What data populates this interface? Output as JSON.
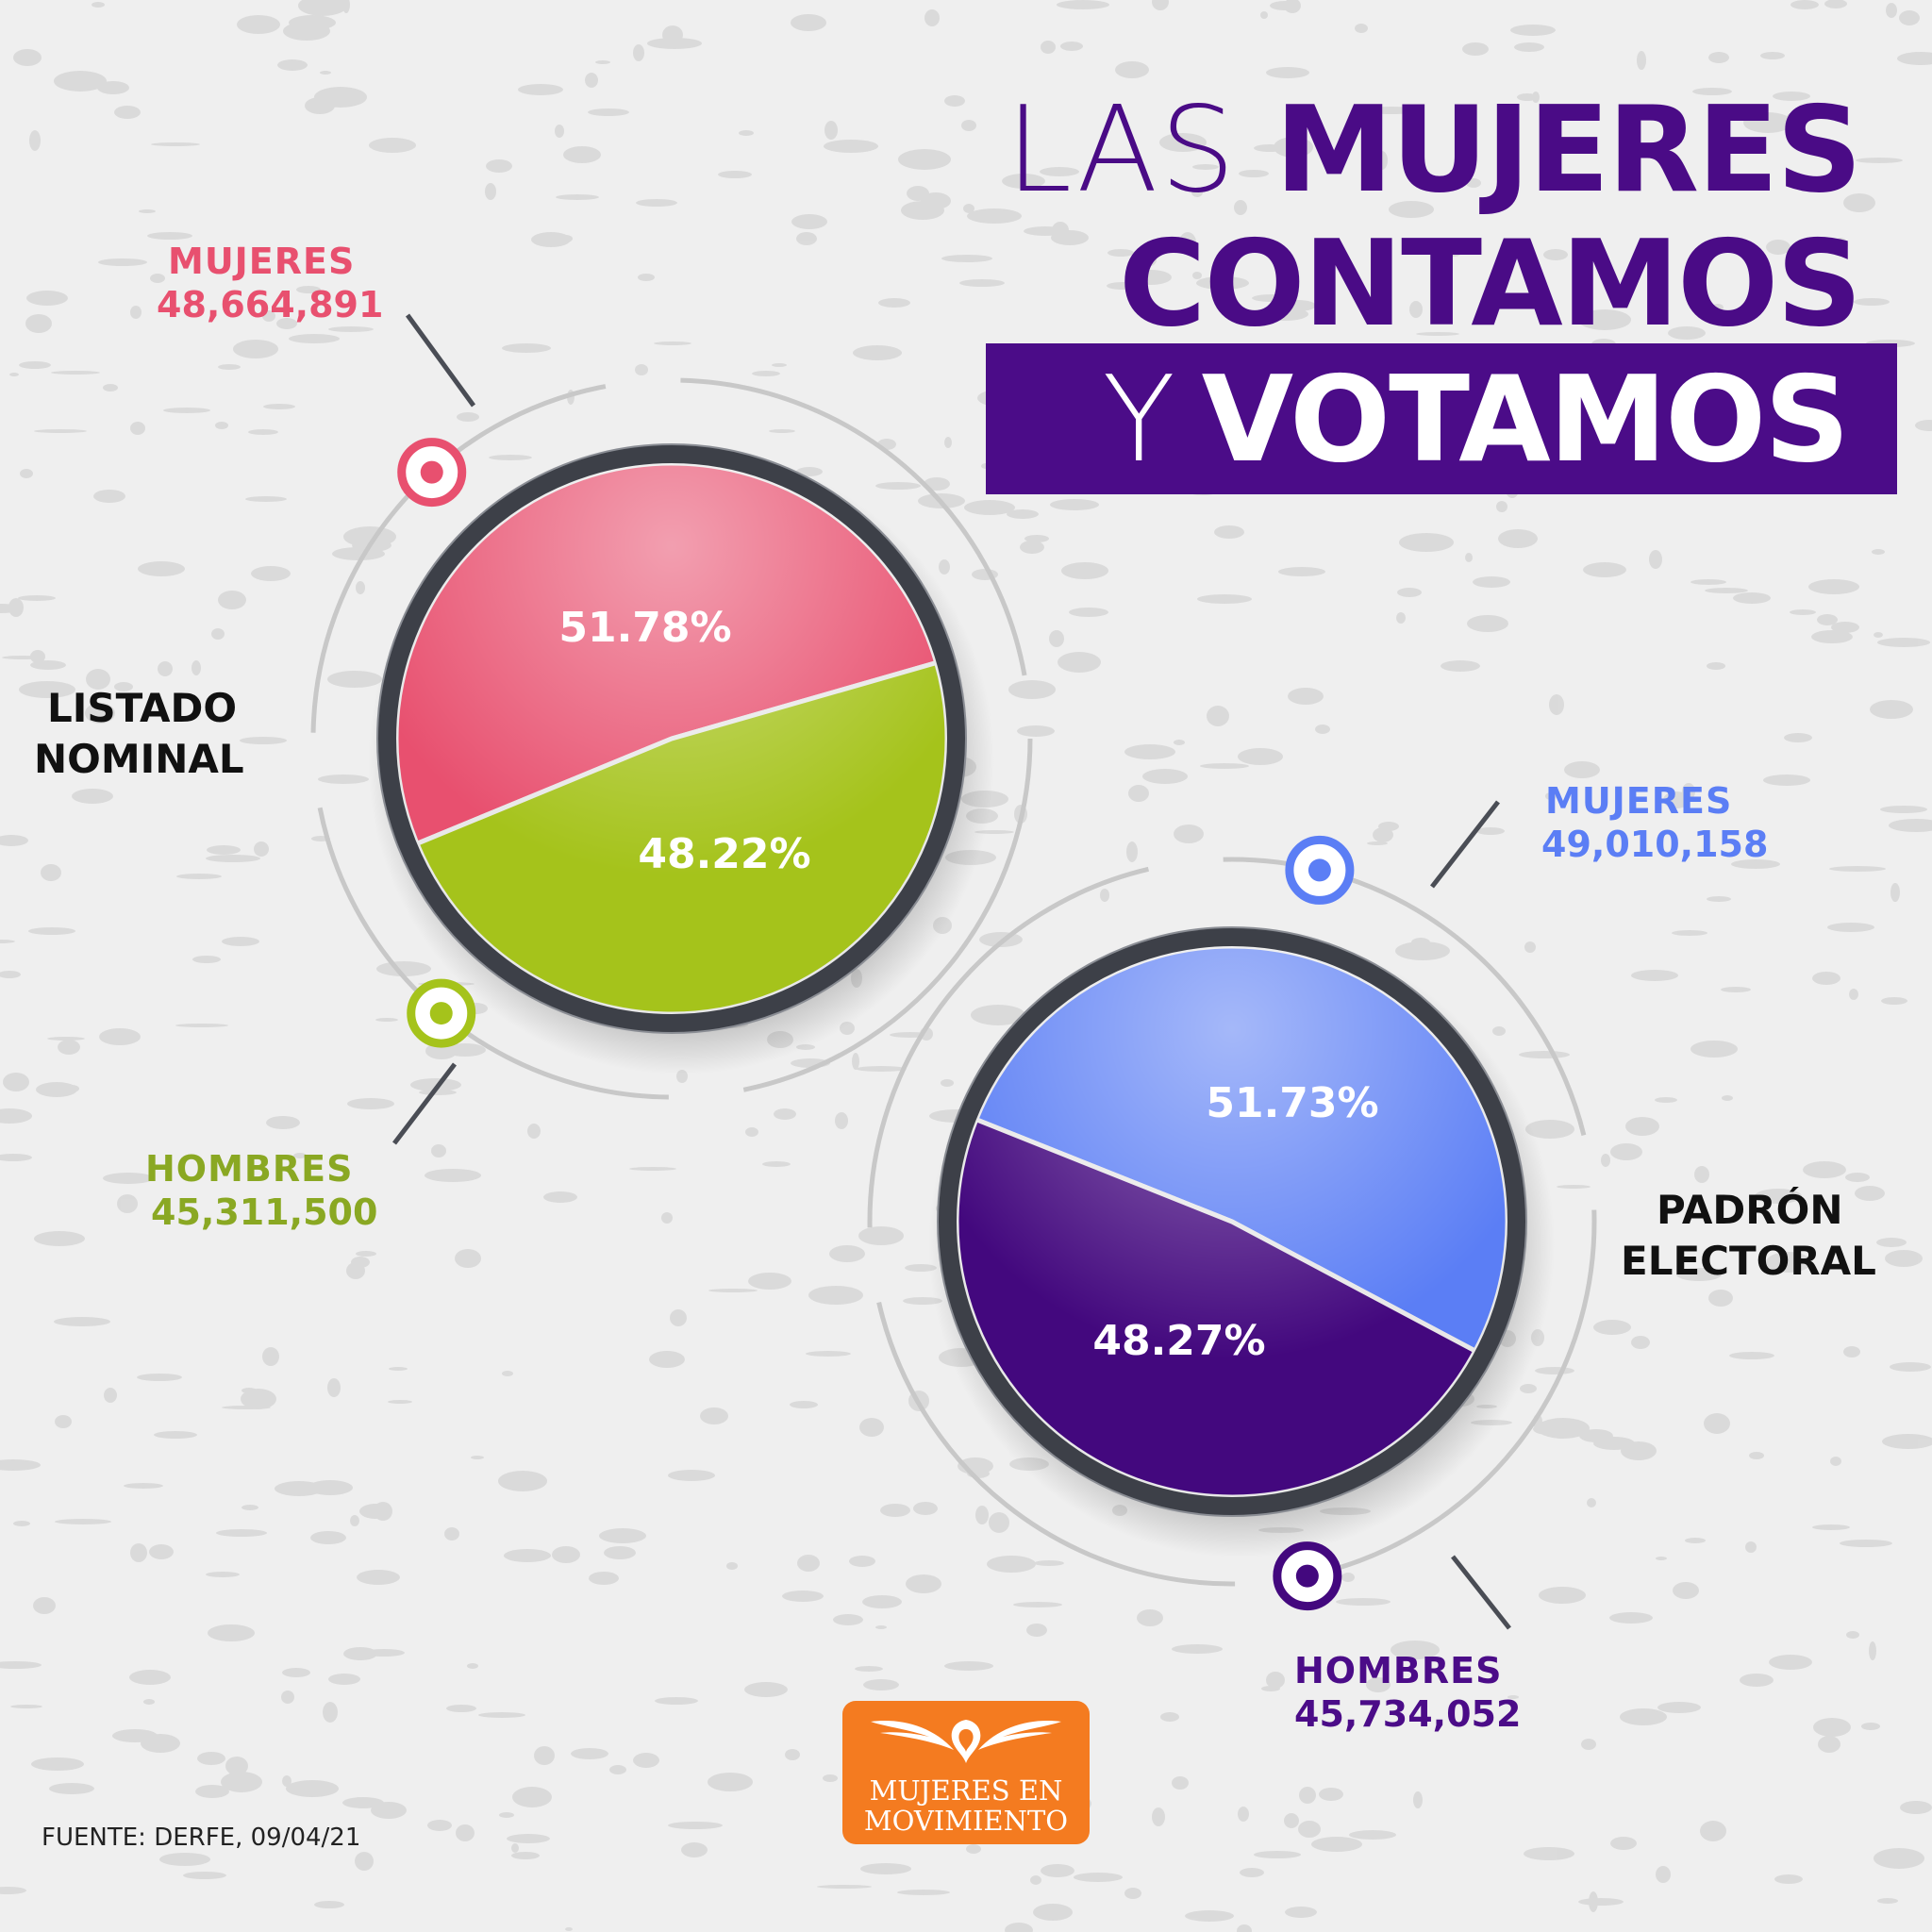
{
  "title": {
    "line1_light": "LAS",
    "line1_bold": "MUJERES",
    "line2": "CONTAMOS",
    "line3_light": "Y",
    "line3_bold": "VOTAMOS"
  },
  "chart_data": [
    {
      "type": "pie",
      "title": "LISTADO NOMINAL",
      "title_lines": [
        "LISTADO",
        "NOMINAL"
      ],
      "slices": [
        {
          "label": "MUJERES",
          "count": "48,664,891",
          "percent": 51.78,
          "percent_label": "51.78%",
          "color": "#e8506f"
        },
        {
          "label": "HOMBRES",
          "count": "45,311,500",
          "percent": 48.22,
          "percent_label": "48.22%",
          "color": "#a5c31b"
        }
      ]
    },
    {
      "type": "pie",
      "title": "PADRÓN ELECTORAL",
      "title_lines": [
        "PADRÓN",
        "ELECTORAL"
      ],
      "slices": [
        {
          "label": "MUJERES",
          "count": "49,010,158",
          "percent": 51.73,
          "percent_label": "51.73%",
          "color": "#5b7ef5"
        },
        {
          "label": "HOMBRES",
          "count": "45,734,052",
          "percent": 48.27,
          "percent_label": "48.27%",
          "color": "#43087e"
        }
      ]
    }
  ],
  "colors": {
    "title_purple": "#4a0b86",
    "pink_label": "#e8506f",
    "green_label": "#8aa823",
    "blue_label": "#5b7ef5",
    "purple_label": "#4b0c88"
  },
  "source": "FUENTE: DERFE, 09/04/21",
  "logo": {
    "line1": "MUJERES EN",
    "line2": "MOVIMIENTO",
    "icon": "doves-emblem-icon"
  }
}
